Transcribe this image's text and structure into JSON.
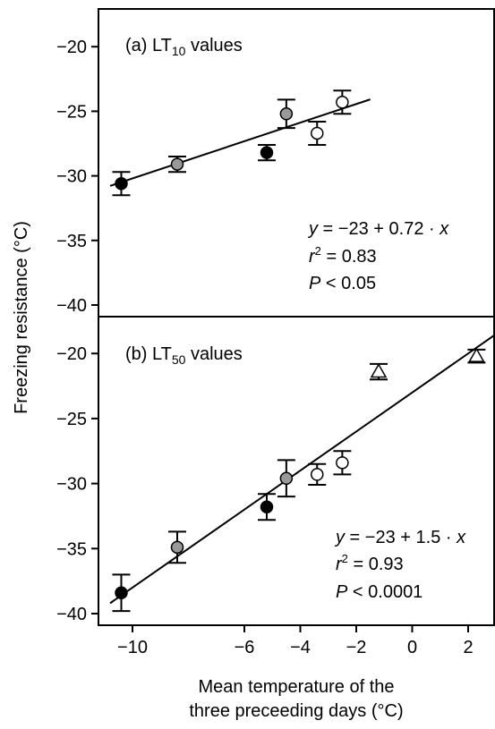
{
  "chart_data": [
    {
      "type": "scatter",
      "panel_label": "(a) LT",
      "panel_sub": "10",
      "panel_suffix": " values",
      "ylabel": "Freezing resistance (°C)",
      "ylim": [
        -41,
        -17.5
      ],
      "yticks": [
        -20,
        -25,
        -30,
        -35,
        -40
      ],
      "ytick_labels": [
        "−20",
        "−25",
        "−30",
        "−35",
        "−40"
      ],
      "xlim": [
        -11.3,
        3.5
      ],
      "points": [
        {
          "x": -10.4,
          "y": -30.6,
          "err": 0.9,
          "marker": "circle",
          "fill": "#000000"
        },
        {
          "x": -8.4,
          "y": -29.1,
          "err": 0.6,
          "marker": "circle",
          "fill": "#999999"
        },
        {
          "x": -5.2,
          "y": -28.2,
          "err": 0.6,
          "marker": "circle",
          "fill": "#000000"
        },
        {
          "x": -4.5,
          "y": -25.2,
          "err": 1.1,
          "marker": "circle",
          "fill": "#999999"
        },
        {
          "x": -3.4,
          "y": -26.7,
          "err": 0.9,
          "marker": "circle",
          "fill": "#ffffff"
        },
        {
          "x": -2.5,
          "y": -24.3,
          "err": 0.9,
          "marker": "circle",
          "fill": "#ffffff"
        }
      ],
      "fit": {
        "intercept": -23,
        "slope": 0.72,
        "x_from": -10.8,
        "x_to": -1.5
      },
      "annotation": {
        "equation": {
          "y": "y",
          "eq": " = −23 + 0.72 · ",
          "x": "x"
        },
        "r2": {
          "r": "r",
          "sup": "2",
          "rest": " = 0.83"
        },
        "p": {
          "p": "P",
          "rest": " < 0.05"
        }
      }
    },
    {
      "type": "scatter",
      "panel_label": "(b) LT",
      "panel_sub": "50",
      "panel_suffix": " values",
      "ylim": [
        -41,
        -17.5
      ],
      "yticks": [
        -20,
        -25,
        -30,
        -35,
        -40
      ],
      "ytick_labels": [
        "−20",
        "−25",
        "−30",
        "−35",
        "−40"
      ],
      "xlim": [
        -11.3,
        3.5
      ],
      "xticks": [
        -10,
        -6,
        -4,
        -2,
        0,
        2
      ],
      "xtick_labels": [
        "−10",
        "−6",
        "−4",
        "−2",
        "0",
        "2"
      ],
      "xlabel_line1": "Mean temperature of the",
      "xlabel_line2": "three preceeding days (°C)",
      "points": [
        {
          "x": -10.4,
          "y": -38.4,
          "err": 1.4,
          "marker": "circle",
          "fill": "#000000"
        },
        {
          "x": -8.4,
          "y": -34.9,
          "err": 1.2,
          "marker": "circle",
          "fill": "#999999"
        },
        {
          "x": -5.2,
          "y": -31.8,
          "err": 1.0,
          "marker": "circle",
          "fill": "#000000"
        },
        {
          "x": -4.5,
          "y": -29.6,
          "err": 1.4,
          "marker": "circle",
          "fill": "#999999"
        },
        {
          "x": -3.4,
          "y": -29.3,
          "err": 0.8,
          "marker": "circle",
          "fill": "#ffffff"
        },
        {
          "x": -2.5,
          "y": -28.4,
          "err": 0.9,
          "marker": "circle",
          "fill": "#ffffff"
        },
        {
          "x": -1.2,
          "y": -21.4,
          "err": 0.6,
          "marker": "triangle",
          "fill": "#ffffff"
        },
        {
          "x": 2.3,
          "y": -20.2,
          "err": 0.5,
          "marker": "triangle",
          "fill": "#ffffff"
        }
      ],
      "fit": {
        "intercept": -23,
        "slope": 1.5,
        "x_from": -10.8,
        "x_to": 3.0
      },
      "annotation": {
        "equation": {
          "y": "y",
          "eq": " = −23 + 1.5 · ",
          "x": "x"
        },
        "r2": {
          "r": "r",
          "sup": "2",
          "rest": " = 0.93"
        },
        "p": {
          "p": "P",
          "rest": " < 0.0001"
        }
      }
    }
  ]
}
